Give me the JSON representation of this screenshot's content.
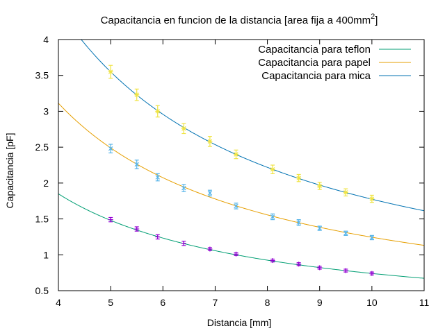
{
  "chart_data": {
    "type": "scatter",
    "title": "Capacitancia en funcion de la distancia [area fija a 400mm",
    "title_superscript": "2",
    "title_suffix": "]",
    "xlabel": "Distancia [mm]",
    "ylabel": "Capacitancia [pF]",
    "xlim": [
      4,
      11
    ],
    "ylim": [
      0.5,
      4
    ],
    "xticks": [
      "4",
      "5",
      "6",
      "7",
      "8",
      "9",
      "10",
      "11"
    ],
    "yticks": [
      "0.5",
      "1",
      "1.5",
      "2",
      "2.5",
      "3",
      "3.5",
      "4"
    ],
    "grid": false,
    "legend_position": "top-right",
    "fit_curves": [
      {
        "name": "Capacitancia para teflon",
        "color": "#009e73",
        "k": 7.4
      },
      {
        "name": "Capacitancia para papel",
        "color": "#e69f00",
        "k": 12.45
      },
      {
        "name": "Capacitancia para mica",
        "color": "#0072b2",
        "k": 17.75
      }
    ],
    "measurements": [
      {
        "color": "#9400d3",
        "marker": "plus",
        "x": [
          5.0,
          5.5,
          5.9,
          6.4,
          6.9,
          7.4,
          8.1,
          8.6,
          9.0,
          9.5,
          10.0
        ],
        "y": [
          1.49,
          1.36,
          1.25,
          1.16,
          1.08,
          1.01,
          0.92,
          0.87,
          0.82,
          0.78,
          0.74
        ],
        "yerr": [
          0.03,
          0.03,
          0.03,
          0.03,
          0.02,
          0.02,
          0.02,
          0.02,
          0.02,
          0.02,
          0.02
        ]
      },
      {
        "color": "#56b4e9",
        "marker": "cross",
        "x": [
          5.0,
          5.5,
          5.9,
          6.4,
          6.9,
          7.4,
          8.1,
          8.6,
          9.0,
          9.5,
          10.0
        ],
        "y": [
          2.48,
          2.26,
          2.08,
          1.93,
          1.86,
          1.68,
          1.53,
          1.45,
          1.37,
          1.3,
          1.24
        ],
        "yerr": [
          0.06,
          0.06,
          0.05,
          0.05,
          0.04,
          0.04,
          0.04,
          0.04,
          0.03,
          0.03,
          0.03
        ]
      },
      {
        "color": "#f0e442",
        "marker": "star",
        "x": [
          5.0,
          5.5,
          5.9,
          6.4,
          6.9,
          7.4,
          8.1,
          8.6,
          9.0,
          9.5,
          10.0
        ],
        "y": [
          3.55,
          3.23,
          3.0,
          2.76,
          2.58,
          2.4,
          2.19,
          2.07,
          1.96,
          1.87,
          1.78
        ],
        "yerr": [
          0.09,
          0.08,
          0.08,
          0.07,
          0.07,
          0.06,
          0.06,
          0.05,
          0.05,
          0.05,
          0.05
        ]
      }
    ]
  }
}
